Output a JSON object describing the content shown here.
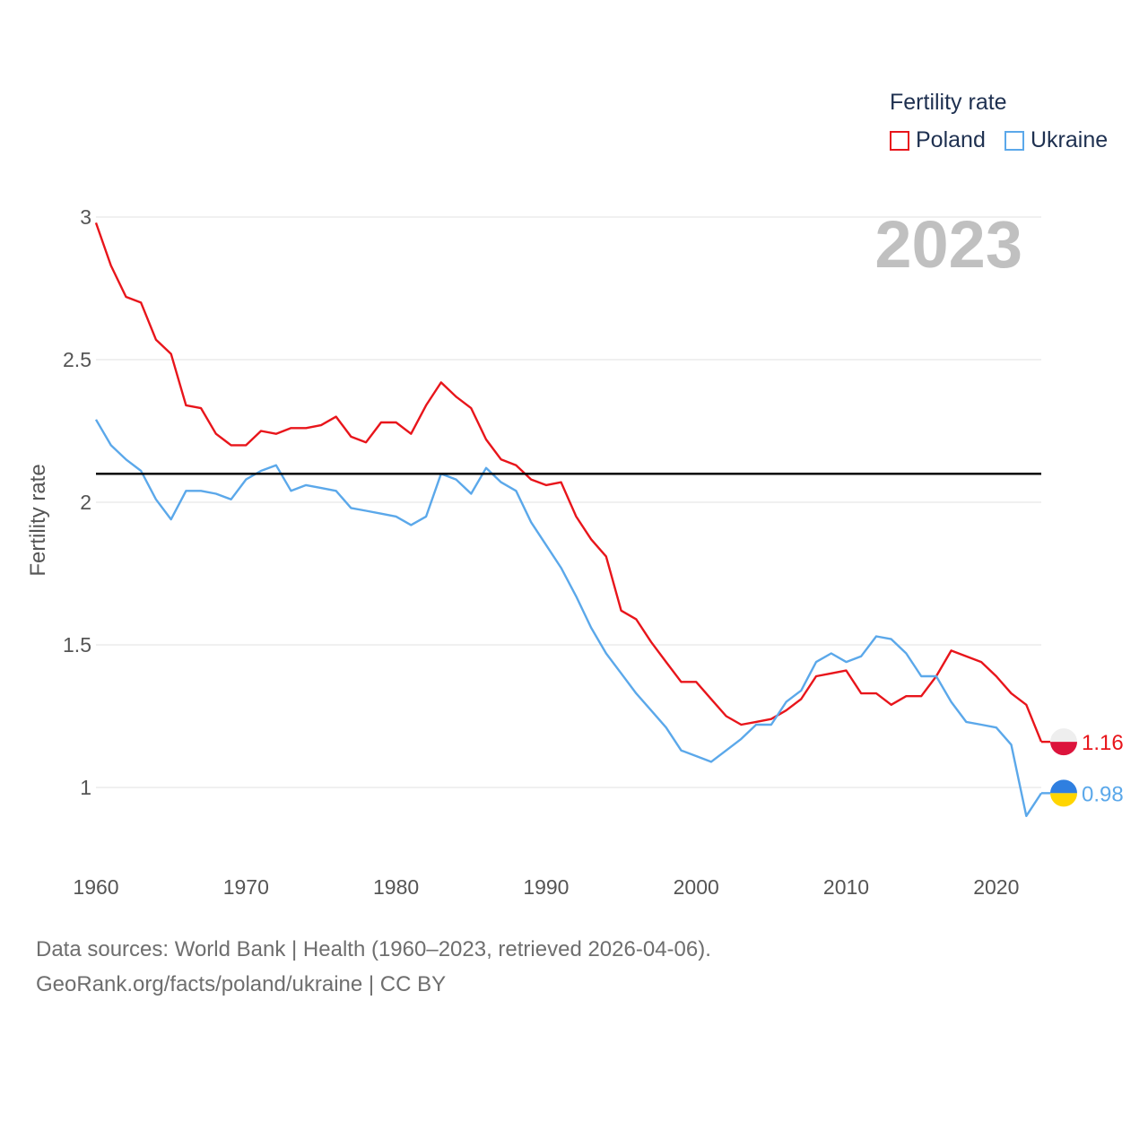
{
  "legend": {
    "title": "Fertility rate",
    "items": [
      {
        "label": "Poland",
        "color": "#e8151b"
      },
      {
        "label": "Ukraine",
        "color": "#5ba8ea"
      }
    ]
  },
  "year_label": "2023",
  "footer": {
    "line1": "Data sources: World Bank | Health (1960–2023, retrieved 2026-04-06).",
    "line2": "GeoRank.org/facts/poland/ukraine | CC BY"
  },
  "chart_data": {
    "type": "line",
    "title": "",
    "xlabel": "",
    "ylabel": "Fertility rate",
    "xlim": [
      1960,
      2023
    ],
    "ylim": [
      0.8,
      3
    ],
    "xticks": [
      "1960",
      "1970",
      "1980",
      "1990",
      "2000",
      "2010",
      "2020"
    ],
    "yticks": [
      "1",
      "1.5",
      "2",
      "2.5",
      "3"
    ],
    "reference_line": {
      "y": 2.1,
      "color": "#000000"
    },
    "x": [
      1960,
      1961,
      1962,
      1963,
      1964,
      1965,
      1966,
      1967,
      1968,
      1969,
      1970,
      1971,
      1972,
      1973,
      1974,
      1975,
      1976,
      1977,
      1978,
      1979,
      1980,
      1981,
      1982,
      1983,
      1984,
      1985,
      1986,
      1987,
      1988,
      1989,
      1990,
      1991,
      1992,
      1993,
      1994,
      1995,
      1996,
      1997,
      1998,
      1999,
      2000,
      2001,
      2002,
      2003,
      2004,
      2005,
      2006,
      2007,
      2008,
      2009,
      2010,
      2011,
      2012,
      2013,
      2014,
      2015,
      2016,
      2017,
      2018,
      2019,
      2020,
      2021,
      2022,
      2023
    ],
    "series": [
      {
        "name": "Poland",
        "color": "#e8151b",
        "end_label": "1.16",
        "values": [
          2.98,
          2.83,
          2.72,
          2.7,
          2.57,
          2.52,
          2.34,
          2.33,
          2.24,
          2.2,
          2.2,
          2.25,
          2.24,
          2.26,
          2.26,
          2.27,
          2.3,
          2.23,
          2.21,
          2.28,
          2.28,
          2.24,
          2.34,
          2.42,
          2.37,
          2.33,
          2.22,
          2.15,
          2.13,
          2.08,
          2.06,
          2.07,
          1.95,
          1.87,
          1.81,
          1.62,
          1.59,
          1.51,
          1.44,
          1.37,
          1.37,
          1.31,
          1.25,
          1.22,
          1.23,
          1.24,
          1.27,
          1.31,
          1.39,
          1.4,
          1.41,
          1.33,
          1.33,
          1.29,
          1.32,
          1.32,
          1.39,
          1.48,
          1.46,
          1.44,
          1.39,
          1.33,
          1.29,
          1.16
        ]
      },
      {
        "name": "Ukraine",
        "color": "#5ba8ea",
        "end_label": "0.98",
        "values": [
          2.29,
          2.2,
          2.15,
          2.11,
          2.01,
          1.94,
          2.04,
          2.04,
          2.03,
          2.01,
          2.08,
          2.11,
          2.13,
          2.04,
          2.06,
          2.05,
          2.04,
          1.98,
          1.97,
          1.96,
          1.95,
          1.92,
          1.95,
          2.1,
          2.08,
          2.03,
          2.12,
          2.07,
          2.04,
          1.93,
          1.85,
          1.77,
          1.67,
          1.56,
          1.47,
          1.4,
          1.33,
          1.27,
          1.21,
          1.13,
          1.11,
          1.09,
          1.13,
          1.17,
          1.22,
          1.22,
          1.3,
          1.34,
          1.44,
          1.47,
          1.44,
          1.46,
          1.53,
          1.52,
          1.47,
          1.39,
          1.39,
          1.3,
          1.23,
          1.22,
          1.21,
          1.15,
          0.9,
          0.98
        ]
      }
    ]
  }
}
